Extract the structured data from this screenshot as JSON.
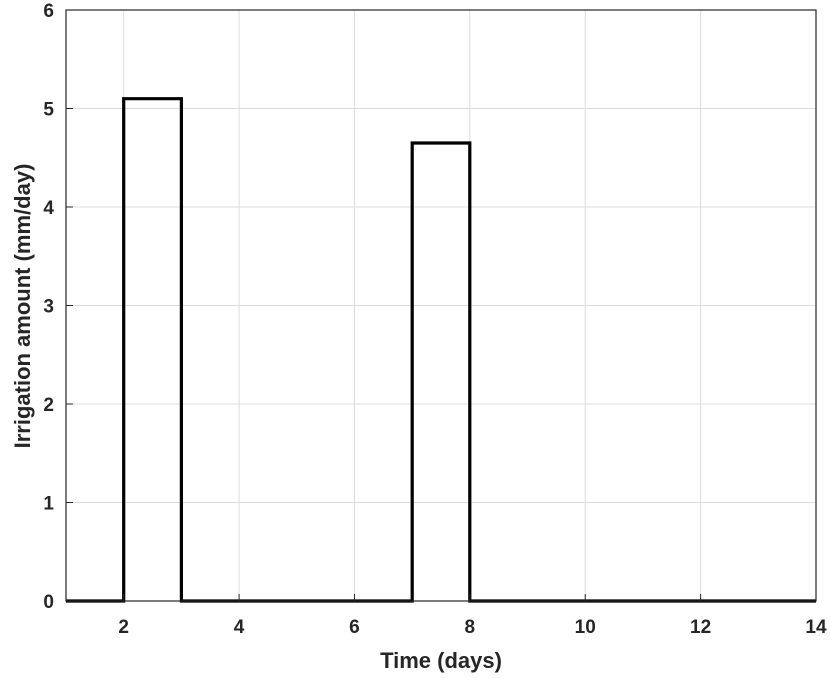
{
  "chart_data": {
    "type": "line",
    "step": true,
    "xlabel": "Time (days)",
    "ylabel": "Irrigation amount (mm/day)",
    "xlim": [
      1,
      14
    ],
    "ylim": [
      0,
      6
    ],
    "xticks": [
      2,
      4,
      6,
      8,
      10,
      12,
      14
    ],
    "yticks": [
      0,
      1,
      2,
      3,
      4,
      5,
      6
    ],
    "grid": true,
    "series": [
      {
        "x": [
          1,
          2,
          2,
          3,
          3,
          7,
          7,
          8,
          8,
          14
        ],
        "y": [
          0,
          0,
          5.1,
          5.1,
          0,
          0,
          4.65,
          4.65,
          0,
          0
        ]
      }
    ],
    "colors": {
      "series": "#000000",
      "grid": "#dcdcdc",
      "axis": "#262626"
    }
  }
}
